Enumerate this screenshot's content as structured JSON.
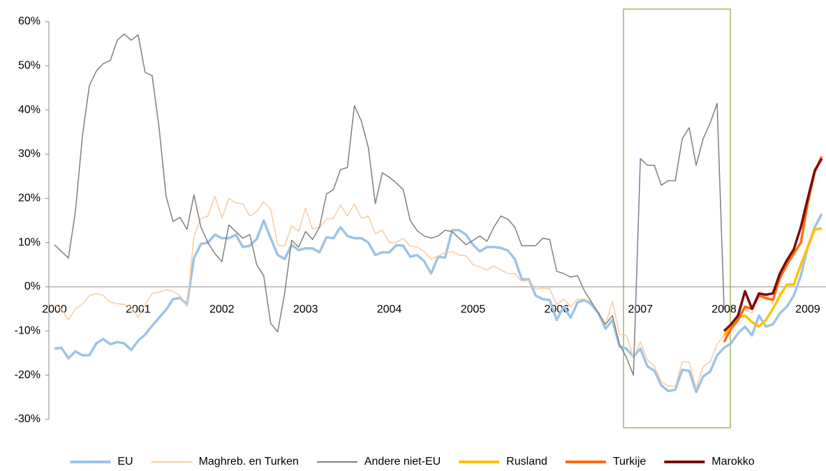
{
  "chart_data": {
    "type": "line",
    "categories": [
      "2000",
      null,
      null,
      null,
      null,
      null,
      null,
      null,
      null,
      null,
      null,
      null,
      "2001",
      null,
      null,
      null,
      null,
      null,
      null,
      null,
      null,
      null,
      null,
      null,
      "2002",
      null,
      null,
      null,
      null,
      null,
      null,
      null,
      null,
      null,
      null,
      null,
      "2003",
      null,
      null,
      null,
      null,
      null,
      null,
      null,
      null,
      null,
      null,
      null,
      "2004",
      null,
      null,
      null,
      null,
      null,
      null,
      null,
      null,
      null,
      null,
      null,
      "2005",
      null,
      null,
      null,
      null,
      null,
      null,
      null,
      null,
      null,
      null,
      null,
      "2006",
      null,
      null,
      null,
      null,
      null,
      null,
      null,
      null,
      null,
      null,
      null,
      "2007",
      null,
      null,
      null,
      null,
      null,
      null,
      null,
      null,
      null,
      null,
      null,
      "2008",
      null,
      null,
      null,
      null,
      null,
      null,
      null,
      null,
      null,
      null,
      null,
      "2009",
      null,
      null
    ],
    "ylim": [
      -30,
      60
    ],
    "yticks": [
      {
        "value": -30,
        "label": "-30%"
      },
      {
        "value": -20,
        "label": "-20%"
      },
      {
        "value": -10,
        "label": "-10%"
      },
      {
        "value": 0,
        "label": "0%"
      },
      {
        "value": 10,
        "label": "10%"
      },
      {
        "value": 20,
        "label": "20%"
      },
      {
        "value": 30,
        "label": "30%"
      },
      {
        "value": 40,
        "label": "40%"
      },
      {
        "value": 50,
        "label": "50%"
      },
      {
        "value": 60,
        "label": "60%"
      }
    ],
    "grid": false,
    "legend": "bottom",
    "series": [
      {
        "name": "EU",
        "color": "#9dc3e6",
        "values": [
          -14,
          -13.8,
          -16.2,
          -14.6,
          -15.5,
          -15.5,
          -12.8,
          -11.8,
          -13,
          -12.5,
          -12.8,
          -14.3,
          -12.2,
          -10.8,
          -8.8,
          -7,
          -5.2,
          -2.8,
          -2.5,
          -4,
          6.5,
          9.7,
          10,
          11.8,
          11,
          11,
          11.8,
          9,
          9.3,
          10.8,
          15,
          11,
          7.2,
          6.3,
          9.5,
          8.3,
          8.7,
          8.7,
          7.8,
          11.2,
          11,
          13.5,
          11.5,
          11,
          11,
          10,
          7.2,
          7.8,
          7.8,
          9.4,
          9.3,
          6.8,
          7.2,
          5.8,
          3,
          6.8,
          6.6,
          12.8,
          12.8,
          11.8,
          9.5,
          8,
          9,
          9,
          8.8,
          8.2,
          6.3,
          1.7,
          1.7,
          -2,
          -2.8,
          -3,
          -7.5,
          -4.5,
          -7,
          -3.5,
          -3,
          -4,
          -6,
          -9.5,
          -7.5,
          -13.5,
          -14,
          -15.8,
          -14,
          -18,
          -19,
          -22.3,
          -23.6,
          -23.3,
          -18.8,
          -19,
          -23.8,
          -20.3,
          -19.2,
          -15.5,
          -13.8,
          -12.8,
          -10.5,
          -9,
          -11,
          -6.5,
          -9,
          -8.5,
          -6,
          -4.5,
          -2,
          2.5,
          9,
          13.5,
          16.5
        ]
      },
      {
        "name": "Maghreb. en Turken",
        "color": "#f8cba0",
        "values": [
          -4,
          -5,
          -7.5,
          -5,
          -4,
          -2,
          -1.5,
          -2,
          -3.5,
          -3.8,
          -4,
          -4.5,
          -7,
          -4,
          -1.5,
          -1.2,
          -0.7,
          -1,
          -2,
          -4.5,
          11.5,
          15.5,
          16,
          20.5,
          15.5,
          20,
          19,
          18.8,
          16,
          17,
          19.3,
          17.5,
          9.5,
          9.2,
          13.8,
          12.5,
          17.8,
          13,
          13.5,
          15.3,
          15.5,
          18.5,
          16,
          18.8,
          15.5,
          16,
          12,
          12.8,
          10,
          10,
          11,
          9.2,
          9,
          8,
          6.3,
          7,
          7.7,
          8,
          7.2,
          7,
          5,
          4.5,
          3.8,
          4.7,
          3.8,
          3,
          3,
          1.2,
          1.5,
          -0.5,
          -0.3,
          -0.5,
          -4,
          -2.8,
          -4.5,
          -2.8,
          -2.8,
          -3.5,
          -6,
          -8.5,
          -3.3,
          -10.8,
          -11,
          -16,
          -12.5,
          -16.5,
          -18,
          -21.5,
          -22.5,
          -22.5,
          -17,
          -17,
          -23,
          -18,
          -17,
          -13,
          -11,
          -9,
          -7,
          -5,
          -6,
          -2,
          -3,
          -3,
          2,
          5,
          8,
          10,
          19,
          26,
          29.5
        ]
      },
      {
        "name": "Andere niet-EU",
        "color": "#7f7f7f",
        "values": [
          9.5,
          8,
          6.5,
          17,
          34,
          45.5,
          48.8,
          50.5,
          51.2,
          55.8,
          57.2,
          55.8,
          57,
          48.5,
          47.8,
          36,
          20.5,
          14.8,
          15.7,
          13,
          20.8,
          13.5,
          10,
          7.5,
          5.7,
          14,
          12.5,
          11,
          11.8,
          5,
          2.5,
          -8.3,
          -10.2,
          -1.5,
          10.5,
          9,
          12.5,
          10.7,
          13.5,
          21,
          22,
          26.5,
          27,
          41,
          37.5,
          31.5,
          18.8,
          25.8,
          24.8,
          23.5,
          22,
          15,
          12.7,
          11.5,
          11,
          11.5,
          12.8,
          12.5,
          11,
          9.5,
          10.5,
          11.5,
          10.3,
          13.5,
          16,
          15.3,
          13.5,
          9.3,
          9.3,
          9.3,
          11,
          10.7,
          3.5,
          3,
          2.2,
          2.5,
          -1,
          -3.5,
          -6,
          -8.5,
          -6.5,
          -13,
          -16,
          -20,
          29,
          27.5,
          27.5,
          23,
          24,
          24,
          33.5,
          36,
          27.5,
          33.5,
          37,
          41.5,
          -5,
          null,
          null,
          null,
          null,
          null,
          null,
          null,
          null,
          null,
          null,
          null,
          null,
          null,
          null
        ]
      },
      {
        "name": "Rusland",
        "color": "#ffc000",
        "values": [
          null,
          null,
          null,
          null,
          null,
          null,
          null,
          null,
          null,
          null,
          null,
          null,
          null,
          null,
          null,
          null,
          null,
          null,
          null,
          null,
          null,
          null,
          null,
          null,
          null,
          null,
          null,
          null,
          null,
          null,
          null,
          null,
          null,
          null,
          null,
          null,
          null,
          null,
          null,
          null,
          null,
          null,
          null,
          null,
          null,
          null,
          null,
          null,
          null,
          null,
          null,
          null,
          null,
          null,
          null,
          null,
          null,
          null,
          null,
          null,
          null,
          null,
          null,
          null,
          null,
          null,
          null,
          null,
          null,
          null,
          null,
          null,
          null,
          null,
          null,
          null,
          null,
          null,
          null,
          null,
          null,
          null,
          null,
          null,
          null,
          null,
          null,
          null,
          null,
          null,
          null,
          null,
          null,
          null,
          null,
          null,
          -11,
          -9,
          -7,
          -6.5,
          -8,
          -9,
          -7.5,
          -5,
          -2,
          0.5,
          0.5,
          5,
          9,
          13,
          13.2
        ]
      },
      {
        "name": "Turkije",
        "color": "#ff6a13",
        "values": [
          null,
          null,
          null,
          null,
          null,
          null,
          null,
          null,
          null,
          null,
          null,
          null,
          null,
          null,
          null,
          null,
          null,
          null,
          null,
          null,
          null,
          null,
          null,
          null,
          null,
          null,
          null,
          null,
          null,
          null,
          null,
          null,
          null,
          null,
          null,
          null,
          null,
          null,
          null,
          null,
          null,
          null,
          null,
          null,
          null,
          null,
          null,
          null,
          null,
          null,
          null,
          null,
          null,
          null,
          null,
          null,
          null,
          null,
          null,
          null,
          null,
          null,
          null,
          null,
          null,
          null,
          null,
          null,
          null,
          null,
          null,
          null,
          null,
          null,
          null,
          null,
          null,
          null,
          null,
          null,
          null,
          null,
          null,
          null,
          null,
          null,
          null,
          null,
          null,
          null,
          null,
          null,
          null,
          null,
          null,
          null,
          -12.5,
          -9.5,
          -7.5,
          -4.5,
          -5,
          -2,
          -2.5,
          -3,
          2,
          5,
          7.5,
          10,
          19,
          26,
          29.5
        ]
      },
      {
        "name": "Marokko",
        "color": "#7b0c0c",
        "values": [
          null,
          null,
          null,
          null,
          null,
          null,
          null,
          null,
          null,
          null,
          null,
          null,
          null,
          null,
          null,
          null,
          null,
          null,
          null,
          null,
          null,
          null,
          null,
          null,
          null,
          null,
          null,
          null,
          null,
          null,
          null,
          null,
          null,
          null,
          null,
          null,
          null,
          null,
          null,
          null,
          null,
          null,
          null,
          null,
          null,
          null,
          null,
          null,
          null,
          null,
          null,
          null,
          null,
          null,
          null,
          null,
          null,
          null,
          null,
          null,
          null,
          null,
          null,
          null,
          null,
          null,
          null,
          null,
          null,
          null,
          null,
          null,
          null,
          null,
          null,
          null,
          null,
          null,
          null,
          null,
          null,
          null,
          null,
          null,
          null,
          null,
          null,
          null,
          null,
          null,
          null,
          null,
          null,
          null,
          null,
          null,
          -10,
          -8.5,
          -6.5,
          -1,
          -5,
          -1.5,
          -1.8,
          -1.5,
          3,
          6,
          8.5,
          13.5,
          20,
          26.3,
          29
        ]
      }
    ]
  }
}
